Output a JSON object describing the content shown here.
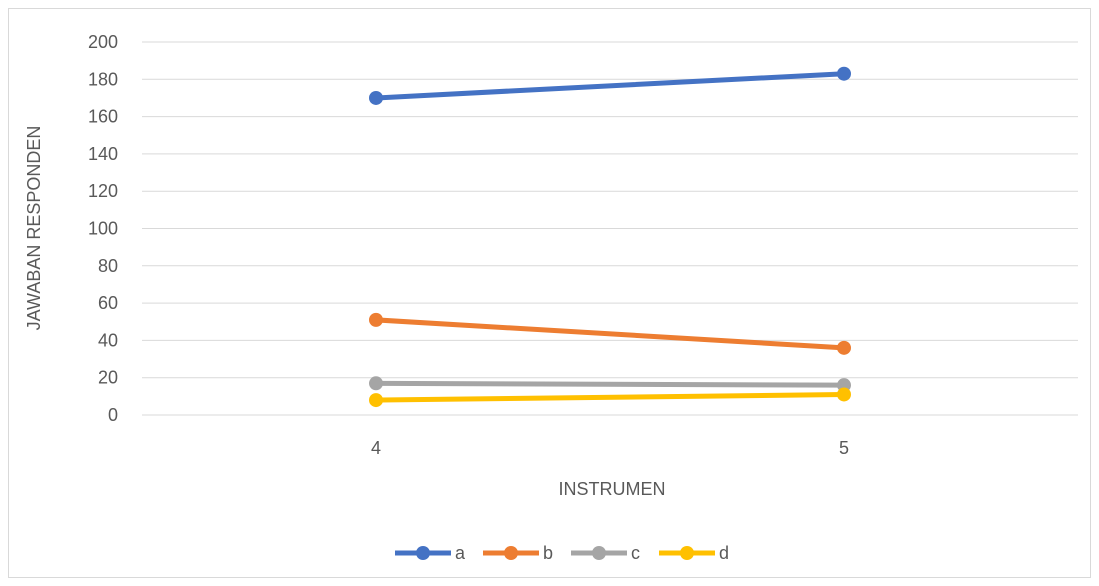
{
  "chart_data": {
    "type": "line",
    "title": "",
    "xlabel": "INSTRUMEN",
    "ylabel": "JAWABAN RESPONDEN",
    "categories": [
      "4",
      "5"
    ],
    "ylim": [
      0,
      200
    ],
    "yticks": [
      "0",
      "20",
      "40",
      "60",
      "80",
      "100",
      "120",
      "140",
      "160",
      "180",
      "200"
    ],
    "grid": true,
    "legend_position": "bottom",
    "series": [
      {
        "name": "a",
        "values": [
          170,
          183
        ],
        "color": "#4472C4"
      },
      {
        "name": "b",
        "values": [
          51,
          36
        ],
        "color": "#ED7D31"
      },
      {
        "name": "c",
        "values": [
          17,
          16
        ],
        "color": "#A5A5A5"
      },
      {
        "name": "d",
        "values": [
          8,
          11
        ],
        "color": "#FFC000"
      }
    ]
  }
}
